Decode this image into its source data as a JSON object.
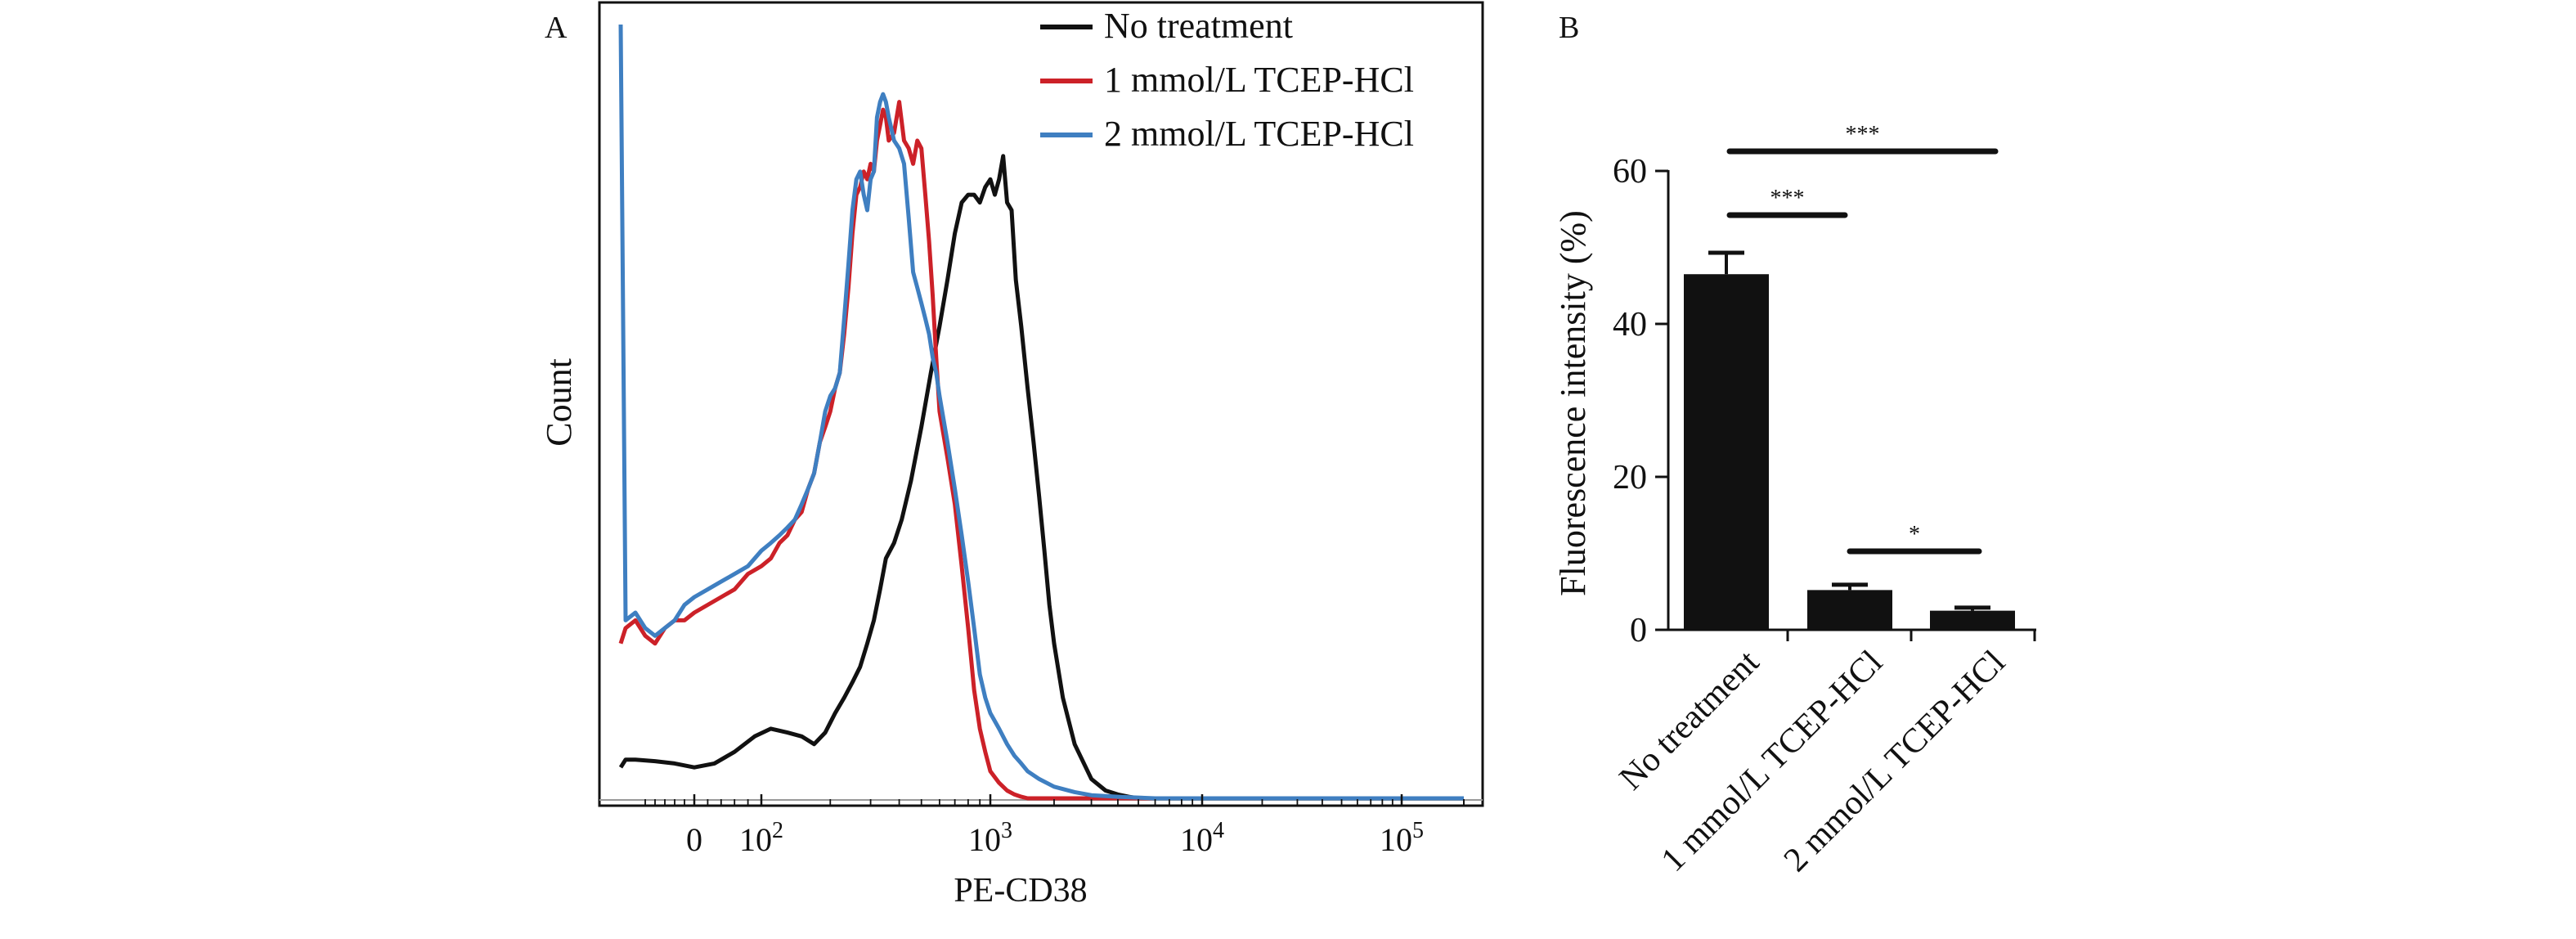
{
  "chart_data": [
    {
      "panel_label": "A",
      "type": "line",
      "xlabel": "PE-CD38",
      "ylabel": "Count",
      "x_scale": "logicle",
      "x_ticks": [
        {
          "value": 0,
          "label": "0"
        },
        {
          "value": 100,
          "label": "10",
          "sup": "2"
        },
        {
          "value": 1000,
          "label": "10",
          "sup": "3"
        },
        {
          "value": 10000,
          "label": "10",
          "sup": "4"
        },
        {
          "value": 100000,
          "label": "10",
          "sup": "5"
        }
      ],
      "legend_position": "top-right",
      "series": [
        {
          "name": "No treatment",
          "color": "#111111",
          "x": [
            -150,
            -140,
            -120,
            -80,
            -40,
            0,
            30,
            60,
            90,
            110,
            130,
            150,
            170,
            190,
            210,
            230,
            250,
            270,
            290,
            310,
            330,
            350,
            380,
            410,
            450,
            500,
            550,
            600,
            650,
            700,
            750,
            800,
            850,
            900,
            950,
            1000,
            1050,
            1100,
            1150,
            1200,
            1260,
            1320,
            1400,
            1500,
            1600,
            1700,
            1800,
            1900,
            2000,
            2200,
            2500,
            3000,
            3500,
            4000,
            4500,
            5000,
            6000,
            10000,
            50000,
            200000
          ],
          "y": [
            4,
            5,
            5,
            4.8,
            4.5,
            4,
            4.5,
            6,
            8,
            9,
            8.5,
            8,
            7,
            8.5,
            11,
            13,
            15,
            17,
            20,
            23,
            27,
            31,
            33,
            36,
            41,
            48,
            55,
            61,
            67,
            73,
            77,
            78,
            78,
            77,
            79,
            80,
            78,
            80,
            83,
            77,
            76,
            67,
            61,
            53,
            46,
            39,
            32,
            25,
            20,
            13,
            7,
            2.5,
            1,
            0.5,
            0.2,
            0,
            0,
            0,
            0,
            0
          ]
        },
        {
          "name": "1 mmol/L TCEP-HCl",
          "color": "#cc2128",
          "x": [
            -150,
            -140,
            -120,
            -100,
            -80,
            -60,
            -40,
            -20,
            0,
            20,
            40,
            60,
            80,
            100,
            110,
            120,
            130,
            140,
            150,
            160,
            170,
            180,
            190,
            200,
            210,
            220,
            230,
            240,
            250,
            260,
            270,
            280,
            290,
            300,
            310,
            320,
            330,
            340,
            350,
            360,
            380,
            400,
            420,
            440,
            460,
            480,
            500,
            520,
            540,
            560,
            580,
            600,
            650,
            700,
            750,
            800,
            850,
            900,
            950,
            1000,
            1100,
            1200,
            1300,
            1400,
            1500,
            1700,
            2000,
            3000,
            10000,
            200000
          ],
          "y": [
            20,
            22,
            23,
            21,
            20,
            22,
            23,
            23,
            24,
            25,
            26,
            27,
            29,
            30,
            31,
            33,
            34,
            36,
            37,
            40,
            42,
            46,
            48,
            50,
            53,
            55,
            60,
            66,
            73,
            78,
            79,
            81,
            80,
            82,
            81,
            85,
            87,
            89,
            88,
            85,
            86,
            90,
            85,
            84,
            82,
            85,
            84,
            78,
            72,
            65,
            57,
            50,
            44,
            38,
            30,
            22,
            14,
            9,
            6,
            3.5,
            2,
            1,
            0.5,
            0.2,
            0,
            0,
            0,
            0,
            0,
            0
          ]
        },
        {
          "name": "2 mmol/L TCEP-HCl",
          "color": "#3f7fc1",
          "x": [
            -150,
            -140,
            -120,
            -100,
            -80,
            -60,
            -40,
            -20,
            0,
            20,
            40,
            60,
            80,
            100,
            110,
            120,
            130,
            140,
            150,
            160,
            170,
            180,
            190,
            200,
            210,
            220,
            230,
            240,
            250,
            260,
            270,
            280,
            290,
            300,
            310,
            320,
            330,
            340,
            350,
            360,
            380,
            400,
            420,
            440,
            460,
            480,
            500,
            520,
            540,
            560,
            580,
            600,
            650,
            700,
            750,
            800,
            850,
            900,
            950,
            1000,
            1100,
            1200,
            1300,
            1400,
            1500,
            1700,
            2000,
            2500,
            3000,
            4000,
            6000,
            10000,
            200000
          ],
          "y": [
            100,
            23,
            24,
            22,
            21,
            22,
            23,
            25,
            26,
            27,
            28,
            29,
            30,
            32,
            33,
            34,
            35,
            36,
            38,
            40,
            42,
            46,
            50,
            52,
            53,
            55,
            62,
            69,
            76,
            80,
            81,
            78,
            76,
            80,
            81,
            88,
            90,
            91,
            90,
            88,
            85,
            84,
            82,
            75,
            68,
            66,
            64,
            62,
            60,
            57,
            55,
            52,
            46,
            40,
            34,
            28,
            22,
            16,
            13,
            11,
            9,
            7,
            5.5,
            4.5,
            3.5,
            2.5,
            1.5,
            0.8,
            0.4,
            0.2,
            0,
            0,
            0
          ]
        }
      ]
    },
    {
      "panel_label": "B",
      "type": "bar",
      "ylabel": "Fluorescence intensity (%)",
      "ylim": [
        0,
        60
      ],
      "y_ticks": [
        0,
        20,
        40,
        60
      ],
      "categories": [
        "No treatment",
        "1 mmol/L TCEP-HCl",
        "2 mmol/L TCEP-HCl"
      ],
      "values": [
        46.5,
        5.2,
        2.5
      ],
      "errors": [
        2.8,
        0.7,
        0.4
      ],
      "bar_color": "#111111",
      "significance": [
        {
          "from": 0,
          "to": 1,
          "label": "***"
        },
        {
          "from": 0,
          "to": 2,
          "label": "***"
        },
        {
          "from": 1,
          "to": 2,
          "label": "*"
        }
      ]
    }
  ]
}
